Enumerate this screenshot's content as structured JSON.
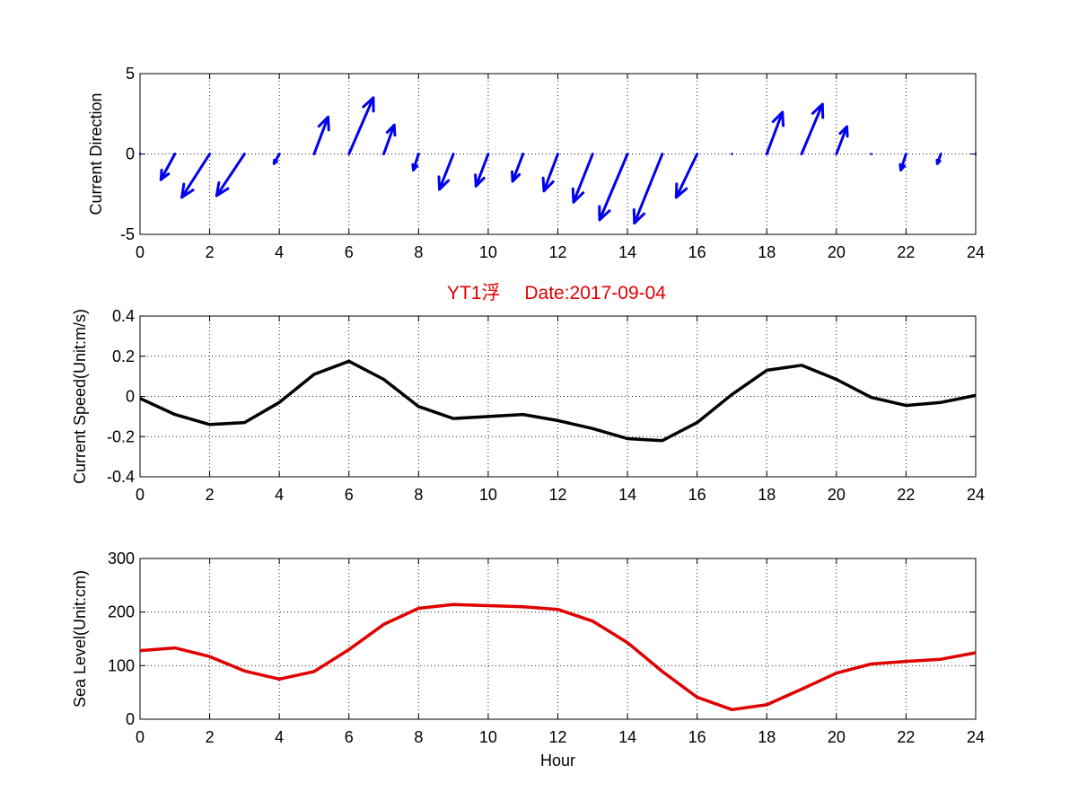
{
  "figure": {
    "title": "YT1浮　 Date:2017-09-04",
    "title_color": "#e00000"
  },
  "chart_data": [
    {
      "type": "quiver",
      "ylabel": "Current Direction",
      "xlim": [
        0,
        24
      ],
      "ylim": [
        -5,
        5
      ],
      "xticks": [
        0,
        2,
        4,
        6,
        8,
        10,
        12,
        14,
        16,
        18,
        20,
        22,
        24
      ],
      "yticks": [
        -5,
        0,
        5
      ],
      "grid": true,
      "color": "#0000ee",
      "x": [
        0,
        1,
        2,
        3,
        4,
        5,
        6,
        7,
        8,
        9,
        10,
        11,
        12,
        13,
        14,
        15,
        16,
        17,
        18,
        19,
        20,
        21,
        22,
        23,
        24
      ],
      "u": [
        0,
        -0.4,
        -0.8,
        -0.8,
        -0.15,
        0.4,
        0.7,
        0.3,
        -0.15,
        -0.4,
        -0.35,
        -0.3,
        -0.4,
        -0.55,
        -0.8,
        -0.8,
        -0.6,
        0,
        0.45,
        0.6,
        0.3,
        0,
        -0.15,
        -0.1,
        0
      ],
      "v": [
        0,
        -1.6,
        -2.7,
        -2.6,
        -0.6,
        2.3,
        3.5,
        1.8,
        -1.0,
        -2.2,
        -2.0,
        -1.7,
        -2.3,
        -3.0,
        -4.1,
        -4.3,
        -2.7,
        0.1,
        2.6,
        3.1,
        1.7,
        0,
        -1.0,
        -0.6,
        0
      ]
    },
    {
      "type": "line",
      "ylabel": "Current Speed(Unit:m/s)",
      "xlim": [
        0,
        24
      ],
      "ylim": [
        -0.4,
        0.4
      ],
      "xticks": [
        0,
        2,
        4,
        6,
        8,
        10,
        12,
        14,
        16,
        18,
        20,
        22,
        24
      ],
      "yticks": [
        -0.4,
        -0.2,
        0,
        0.2,
        0.4
      ],
      "grid": true,
      "color": "#000000",
      "x": [
        0,
        1,
        2,
        3,
        4,
        5,
        6,
        7,
        8,
        9,
        10,
        11,
        12,
        13,
        14,
        15,
        16,
        17,
        18,
        19,
        20,
        21,
        22,
        23,
        24
      ],
      "y": [
        -0.01,
        -0.09,
        -0.14,
        -0.13,
        -0.03,
        0.11,
        0.175,
        0.085,
        -0.05,
        -0.11,
        -0.1,
        -0.09,
        -0.12,
        -0.16,
        -0.21,
        -0.22,
        -0.13,
        0.01,
        0.13,
        0.155,
        0.085,
        -0.005,
        -0.045,
        -0.03,
        0.005
      ]
    },
    {
      "type": "line",
      "ylabel": "Sea Level(Unit:cm)",
      "xlabel": "Hour",
      "xlim": [
        0,
        24
      ],
      "ylim": [
        0,
        300
      ],
      "xticks": [
        0,
        2,
        4,
        6,
        8,
        10,
        12,
        14,
        16,
        18,
        20,
        22,
        24
      ],
      "yticks": [
        0,
        100,
        200,
        300
      ],
      "grid": true,
      "color": "#e00000",
      "x": [
        0,
        1,
        2,
        3,
        4,
        5,
        6,
        7,
        8,
        9,
        10,
        11,
        12,
        13,
        14,
        15,
        16,
        17,
        18,
        19,
        20,
        21,
        22,
        23,
        24
      ],
      "y": [
        128,
        133,
        117,
        90,
        75,
        89,
        130,
        177,
        207,
        214,
        212,
        210,
        205,
        183,
        143,
        89,
        41,
        18,
        27,
        56,
        86,
        103,
        108,
        112,
        124
      ]
    }
  ]
}
